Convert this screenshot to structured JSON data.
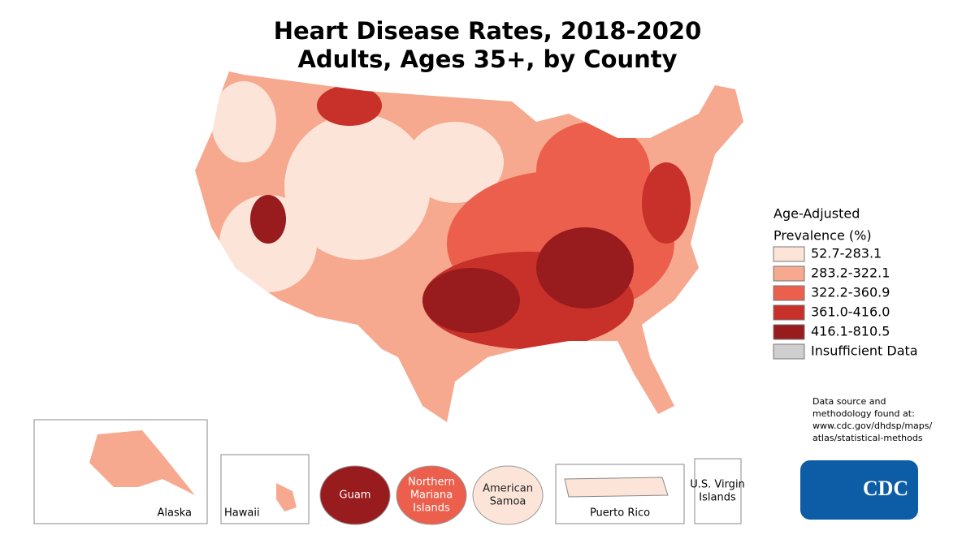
{
  "title": [
    "Heart Disease Rates, 2018-2020",
    "Adults, Ages 35+, by County"
  ],
  "legend": {
    "title": [
      "Age-Adjusted",
      "Prevalence (%)"
    ],
    "items": [
      {
        "label": "52.7-283.1",
        "color": "#fce4d8"
      },
      {
        "label": "283.2-322.1",
        "color": "#f6a98e"
      },
      {
        "label": "322.2-360.9",
        "color": "#ec5f4d"
      },
      {
        "label": "361.0-416.0",
        "color": "#c8302a"
      },
      {
        "label": "416.1-810.5",
        "color": "#981b1e"
      },
      {
        "label": "Insufficient Data",
        "color": "#cfcfcf"
      }
    ]
  },
  "insets": [
    {
      "label": [
        "Alaska"
      ]
    },
    {
      "label": [
        "Hawaii"
      ]
    },
    {
      "label": [
        "Puerto Rico"
      ]
    },
    {
      "label": [
        "U.S. Virgin",
        "Islands"
      ]
    }
  ],
  "territories": [
    {
      "label": [
        "Guam"
      ],
      "color": "#981b1e"
    },
    {
      "label": [
        "Northern",
        "Mariana",
        "Islands"
      ],
      "color": "#ec5f4d"
    },
    {
      "label": [
        "American",
        "Samoa"
      ],
      "color": "#fce4d8"
    }
  ],
  "source": [
    "Data source and",
    "methodology found at:",
    "www.cdc.gov/dhdsp/maps/",
    "atlas/statistical-methods"
  ],
  "logo": "CDC"
}
